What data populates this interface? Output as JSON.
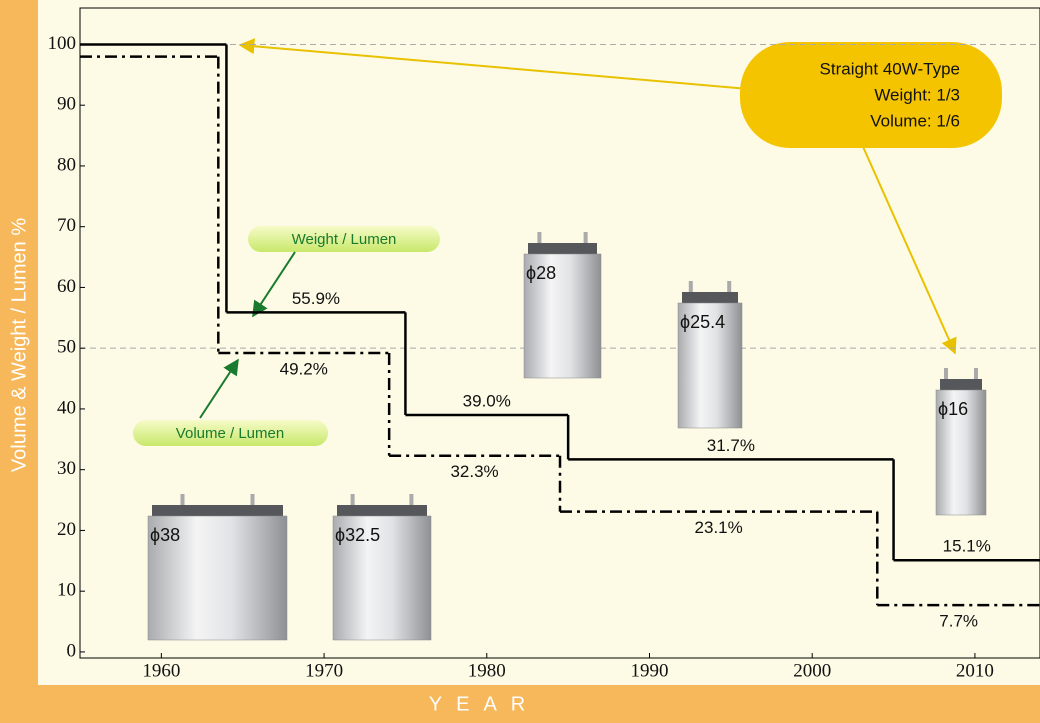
{
  "chart_data": {
    "type": "step",
    "xlabel": "YEAR",
    "ylabel": "Volume & Weight / Lumen %",
    "xlim": [
      1955,
      2014
    ],
    "xticks": [
      1960,
      1970,
      1980,
      1990,
      2000,
      2010
    ],
    "ylim": [
      -1,
      106
    ],
    "yticks": [
      0,
      10,
      20,
      30,
      40,
      50,
      60,
      70,
      80,
      90,
      100
    ],
    "reference_lines": [
      50,
      100
    ],
    "series": [
      {
        "name": "Weight / Lumen",
        "color": "#000000",
        "dash": "solid",
        "x": [
          1955,
          1964,
          1975,
          1985,
          2005
        ],
        "values": [
          100,
          55.9,
          39.0,
          31.7,
          15.1
        ],
        "value_labels": [
          null,
          "55.9%",
          "39.0%",
          "31.7%",
          "15.1%"
        ]
      },
      {
        "name": "Volume / Lumen",
        "color": "#000000",
        "dash": "dashdot",
        "x": [
          1955,
          1963.5,
          1974,
          1984.5,
          2004
        ],
        "values": [
          98,
          49.2,
          32.3,
          23.1,
          7.7
        ],
        "value_labels": [
          null,
          "49.2%",
          "32.3%",
          "23.1%",
          "7.7%"
        ]
      }
    ],
    "callout": {
      "lines": [
        "Straight 40W-Type",
        "Weight: 1/3",
        "Volume: 1/6"
      ]
    },
    "lamps": [
      "ϕ38",
      "ϕ32.5",
      "ϕ28",
      "ϕ25.4",
      "ϕ16"
    ]
  }
}
